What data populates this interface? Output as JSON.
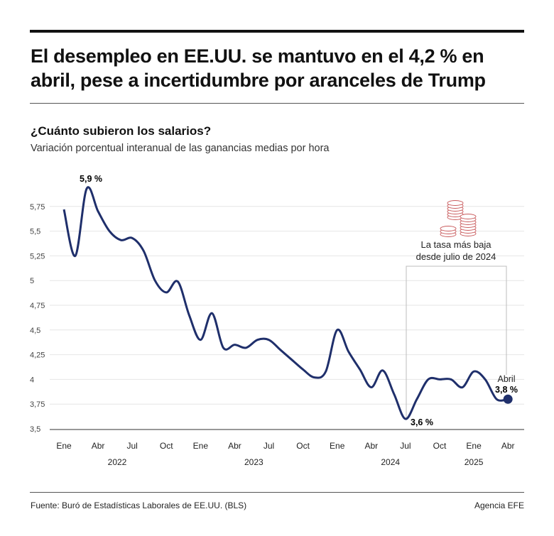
{
  "header": {
    "title": "El desempleo en EE.UU. se mantuvo en el 4,2 % en abril, pese a incertidumbre por aranceles de Trump"
  },
  "chart_data": {
    "type": "line",
    "title": "¿Cuánto subieron los salarios?",
    "subtitle": "Variación porcentual interanual de las ganancias medias por hora",
    "ylim": [
      3.5,
      5.75
    ],
    "yticks": [
      3.5,
      3.75,
      4,
      4.25,
      4.5,
      4.75,
      5,
      5.25,
      5.5,
      5.75
    ],
    "ytick_labels": [
      "3,5",
      "3,75",
      "4",
      "4,25",
      "4,5",
      "4,75",
      "5",
      "5,25",
      "5,5",
      "5,75"
    ],
    "grid": true,
    "x": [
      "2022-01",
      "2022-02",
      "2022-03",
      "2022-04",
      "2022-05",
      "2022-06",
      "2022-07",
      "2022-08",
      "2022-09",
      "2022-10",
      "2022-11",
      "2022-12",
      "2023-01",
      "2023-02",
      "2023-03",
      "2023-04",
      "2023-05",
      "2023-06",
      "2023-07",
      "2023-08",
      "2023-09",
      "2023-10",
      "2023-11",
      "2023-12",
      "2024-01",
      "2024-02",
      "2024-03",
      "2024-04",
      "2024-05",
      "2024-06",
      "2024-07",
      "2024-08",
      "2024-09",
      "2024-10",
      "2024-11",
      "2024-12",
      "2025-01",
      "2025-02",
      "2025-03",
      "2025-04"
    ],
    "values": [
      5.72,
      5.25,
      5.93,
      5.7,
      5.5,
      5.41,
      5.43,
      5.3,
      5.0,
      4.88,
      4.99,
      4.65,
      4.4,
      4.67,
      4.32,
      4.35,
      4.32,
      4.4,
      4.4,
      4.3,
      4.2,
      4.1,
      4.02,
      4.08,
      4.5,
      4.28,
      4.1,
      3.92,
      4.09,
      3.85,
      3.6,
      3.8,
      4.0,
      4.0,
      4.0,
      3.92,
      4.08,
      4.0,
      3.8,
      3.8
    ],
    "xtick_labels": [
      "Ene",
      "Abr",
      "Jul",
      "Oct",
      "Ene",
      "Abr",
      "Jul",
      "Oct",
      "Ene",
      "Abr",
      "Jul",
      "Oct",
      "Ene",
      "Abr"
    ],
    "year_labels": [
      "2022",
      "2023",
      "2024",
      "2025"
    ],
    "annotations": {
      "peak": "5,9 %",
      "low": "3,6 %",
      "last_month": "Abril",
      "last_value": "3,8 %",
      "box_line1": "La tasa más baja",
      "box_line2": "desde julio de 2024"
    },
    "colors": {
      "line": "#1f2f6b",
      "grid": "#e6e6e6",
      "coins": "#c8595b",
      "bracket": "#bdbdbd"
    }
  },
  "footer": {
    "source": "Fuente: Buró de Estadísticas Laborales de EE.UU. (BLS)",
    "agency": "Agencia EFE"
  }
}
